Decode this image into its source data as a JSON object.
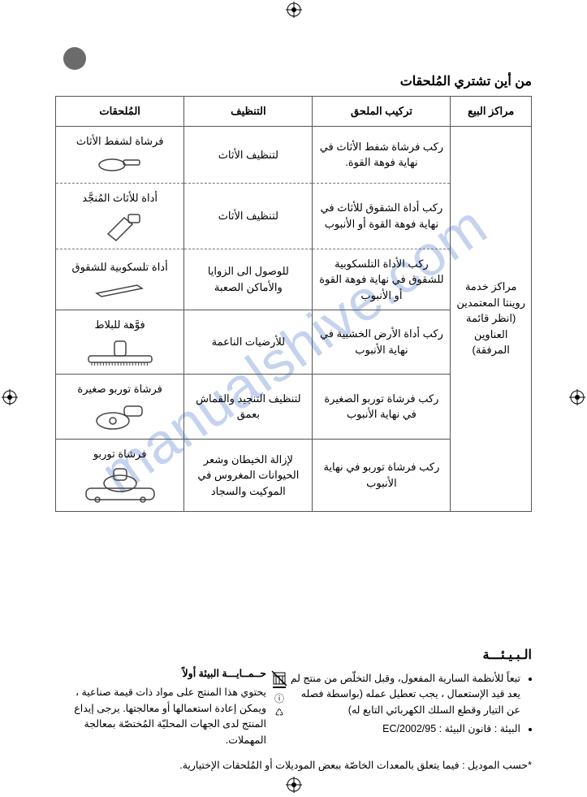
{
  "watermark": "manualshive.com",
  "title": "من أين تشتري المُلحقات",
  "headers": {
    "vendor": "مراكز البيع",
    "fit": "تركيب الملحق",
    "clean": "التنظيف",
    "att": "المُلحقات"
  },
  "vendor_text": "مراكز خدمة روينتا المعتمدين (انظر قائمة العناوين المرفقة)",
  "rows": [
    {
      "fit": "ركب فرشاة شفط الأثاث في نهاية فوهة القوة.",
      "clean": "لتنظيف الأثاث",
      "label": "فرشاة لشفط الأثاث",
      "icon": "brush1",
      "dashed": true
    },
    {
      "fit": "ركب أداة الشقوق للأثاث في نهاية فوهة القوة أو الأنبوب",
      "clean": "لتنظيف الأثاث",
      "label": "أداة للأثاث المُنجَّد",
      "icon": "uphol",
      "dashed": true
    },
    {
      "fit": "ركب الأداة التلسكوبية للشقوق في نهاية فوهة القوة أو الأنبوب",
      "clean": "للوصول الى الزوايا والأماكن الصعبة",
      "label": "أداة تلسكوبية للشقوق",
      "icon": "crevice",
      "dashed": false
    },
    {
      "fit": "ركب أداة الأرض الخشبية في نهاية الأنبوب",
      "clean": "للأرضيات الناعمة",
      "label": "فوَّهة للبلاط",
      "icon": "parquet",
      "dashed": false
    },
    {
      "fit": "ركب فرشاة توربو الصغيرة في نهاية الأنبوب",
      "clean": "لتنظيف التنجيد والقماش بعمق",
      "label": "فرشاة توربو صغيرة",
      "icon": "miniturbo",
      "dashed": false
    },
    {
      "fit": "ركب فرشاة توربو في نهاية الأنبوب",
      "clean": "لإزالة الخيطان وشعر الحيوانات المغروس في الموكيت والسجاد",
      "label": "فرشاة توربو",
      "icon": "turbo",
      "dashed": false
    }
  ],
  "env": {
    "title": "الـبـيـئـــة",
    "bullets": [
      "تبعاً للأنظمة السارية المفعول، وقبل التخلّص من منتج لم يعد قيد الإستعمال ، يجب تعطيل عمله (بواسطة فصله عن التيار وقطع السلك الكهربائي التابع له)",
      "البيئة : قانون البيئة : 2002/95/EC"
    ],
    "protect_h": "حــمــايـــة البيئة أولاً",
    "protect_txt": "يحتوي هذا المنتج على مواد ذات قيمة صناعية ، ويمكن إعادة استعمالها أو معالجتها.\nيرجى إيداع المنتج لدى الجهات المحليّة المُختصّة بمعالجة المهملات."
  },
  "footnote": "*حسب الموديل : فيما يتعلق بالمعدات الخاصّة ببعض الموديلات أو المُلحقات الإختيارية."
}
